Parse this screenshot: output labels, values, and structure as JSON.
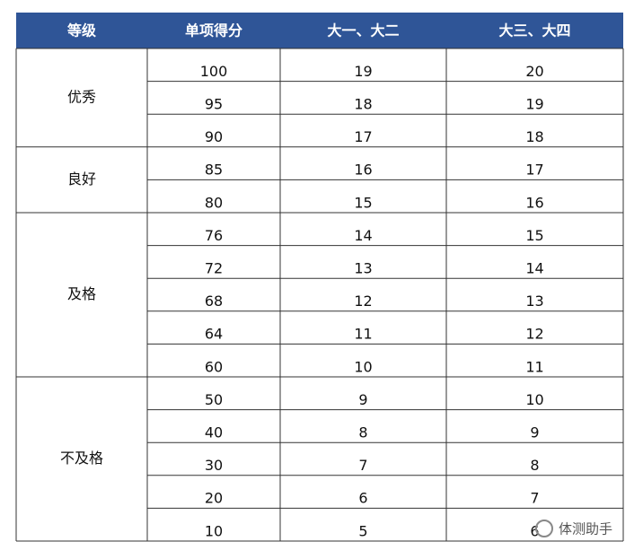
{
  "table": {
    "header": [
      "等级",
      "单项得分",
      "大一、大二",
      "大三、大四"
    ],
    "groups": [
      {
        "grade": "优秀",
        "rows": [
          [
            100,
            19,
            20
          ],
          [
            95,
            18,
            19
          ],
          [
            90,
            17,
            18
          ]
        ]
      },
      {
        "grade": "良好",
        "rows": [
          [
            85,
            16,
            17
          ],
          [
            80,
            15,
            16
          ]
        ]
      },
      {
        "grade": "及格",
        "rows": [
          [
            76,
            14,
            15
          ],
          [
            72,
            13,
            14
          ],
          [
            68,
            12,
            13
          ],
          [
            64,
            11,
            12
          ],
          [
            60,
            10,
            11
          ]
        ]
      },
      {
        "grade": "不及格",
        "rows": [
          [
            50,
            9,
            10
          ],
          [
            40,
            8,
            9
          ],
          [
            30,
            7,
            8
          ],
          [
            20,
            6,
            7
          ],
          [
            10,
            5,
            6
          ]
        ]
      }
    ]
  },
  "watermark": "体测助手"
}
